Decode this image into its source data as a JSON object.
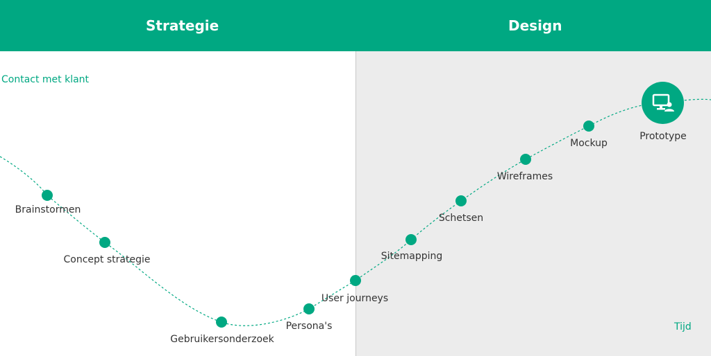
{
  "header": {
    "left_title": "Strategie",
    "right_title": "Design"
  },
  "axes": {
    "y_label": "Contact met klant",
    "x_label": "Tijd"
  },
  "steps": [
    {
      "label": "Brainstormen",
      "phase": "Strategie"
    },
    {
      "label": "Concept strategie",
      "phase": "Strategie"
    },
    {
      "label": "Gebruikersonderzoek",
      "phase": "Strategie"
    },
    {
      "label": "Persona's",
      "phase": "Strategie"
    },
    {
      "label": "User journeys",
      "phase": "Design"
    },
    {
      "label": "Sitemapping",
      "phase": "Design"
    },
    {
      "label": "Schetsen",
      "phase": "Design"
    },
    {
      "label": "Wireframes",
      "phase": "Design"
    },
    {
      "label": "Mockup",
      "phase": "Design"
    },
    {
      "label": "Prototype",
      "phase": "Design",
      "icon": "monitor-user-icon"
    }
  ],
  "colors": {
    "accent": "#00a882",
    "design_bg": "#ececec",
    "text": "#333333"
  }
}
